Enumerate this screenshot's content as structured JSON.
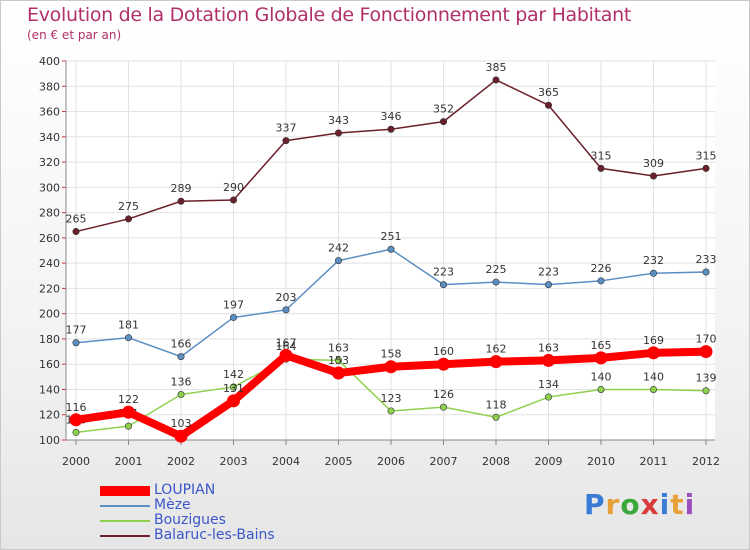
{
  "title": "Evolution de la Dotation Globale de Fonctionnement par Habitant",
  "subtitle": "(en € et par an)",
  "logo": {
    "text": "Proxiti",
    "letters": [
      "P",
      "r",
      "o",
      "x",
      "i",
      "t",
      "i"
    ],
    "colors": [
      "#3a7bd5",
      "#e8a13a",
      "#3aa83a",
      "#d93b3b",
      "#3a7bd5",
      "#e8a13a",
      "#9b4fbf"
    ]
  },
  "chart_data": {
    "type": "line",
    "x": [
      "2000",
      "2001",
      "2002",
      "2003",
      "2004",
      "2005",
      "2006",
      "2007",
      "2008",
      "2009",
      "2010",
      "2011",
      "2012"
    ],
    "ylim": [
      100,
      400
    ],
    "yticks": [
      100,
      120,
      140,
      160,
      180,
      200,
      220,
      240,
      260,
      280,
      300,
      320,
      340,
      360,
      380,
      400
    ],
    "grid": true,
    "legend_placement": "bottom-left",
    "series": [
      {
        "name": "Balaruc-les-Bains",
        "color": "#6b1f2a",
        "values": [
          265,
          275,
          289,
          290,
          337,
          343,
          346,
          352,
          385,
          365,
          315,
          309,
          315
        ],
        "labels": [
          "265",
          "275",
          "289",
          "290",
          "337",
          "343",
          "346",
          "352",
          "385",
          "365",
          "315",
          "309",
          "315"
        ]
      },
      {
        "name": "Mèze",
        "color": "#5b8fc4",
        "values": [
          177,
          181,
          166,
          197,
          203,
          242,
          251,
          223,
          225,
          223,
          226,
          232,
          233
        ],
        "labels": [
          "177",
          "181",
          "166",
          "197",
          "203",
          "242",
          "251",
          "223",
          "225",
          "223",
          "226",
          "232",
          "233"
        ]
      },
      {
        "name": "Bouzigues",
        "color": "#8fd14f",
        "values": [
          106,
          111,
          136,
          142,
          164,
          163,
          123,
          126,
          118,
          134,
          140,
          140,
          139
        ],
        "labels": [
          "106",
          "111",
          "136",
          "142",
          "164",
          "163",
          "123",
          "126",
          "118",
          "134",
          "140",
          "140",
          "139"
        ]
      },
      {
        "name": "LOUPIAN",
        "color": "#ff0000",
        "values": [
          116,
          122,
          103,
          131,
          167,
          153,
          158,
          160,
          162,
          163,
          165,
          169,
          170
        ],
        "labels": [
          "116",
          "122",
          "103",
          "131",
          "167",
          "153",
          "158",
          "160",
          "162",
          "163",
          "165",
          "169",
          "170"
        ]
      }
    ],
    "legend_order": [
      "LOUPIAN",
      "Mèze",
      "Bouzigues",
      "Balaruc-les-Bains"
    ]
  }
}
